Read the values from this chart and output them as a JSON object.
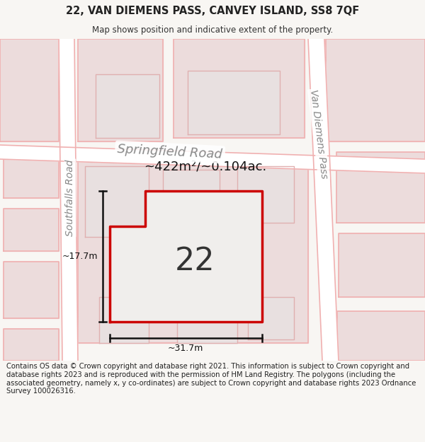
{
  "title_line1": "22, VAN DIEMENS PASS, CANVEY ISLAND, SS8 7QF",
  "title_line2": "Map shows position and indicative extent of the property.",
  "footer_text": "Contains OS data © Crown copyright and database right 2021. This information is subject to Crown copyright and database rights 2023 and is reproduced with the permission of HM Land Registry. The polygons (including the associated geometry, namely x, y co-ordinates) are subject to Crown copyright and database rights 2023 Ordnance Survey 100026316.",
  "bg_color": "#f2f0ee",
  "road_color": "#ffffff",
  "road_edge_color": "#f0b0b0",
  "block_fill": "#ecdcdc",
  "block_edge": "#f0b0b0",
  "inner_block_fill": "#e8e0e0",
  "inner_block_edge": "#e0b0b0",
  "plot_fill": "#f0eeec",
  "plot_outline": "#cc0000",
  "plot_label": "22",
  "area_text": "~422m²/~0.104ac.",
  "dim_width": "~31.7m",
  "dim_height": "~17.7m",
  "street_label_1": "Springfield Road",
  "street_label_2": "Van Diemens Pass",
  "street_label_3": "Southfalls Road",
  "footer_fontsize": 7.2,
  "title_fontsize1": 10.5,
  "title_fontsize2": 8.5
}
